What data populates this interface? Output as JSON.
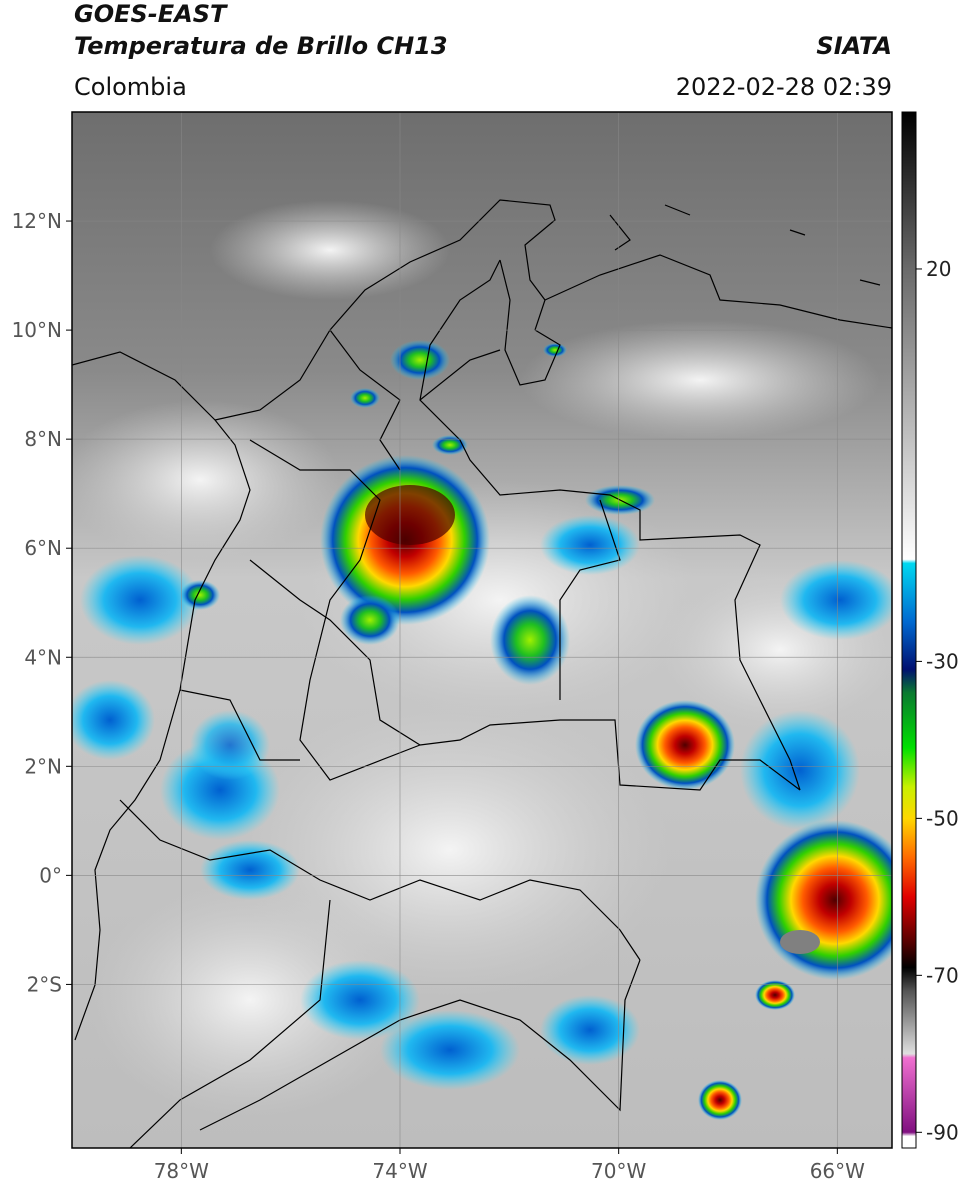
{
  "header": {
    "title_line1": "GOES-EAST",
    "title_line2": "Temperatura de Brillo CH13",
    "source": "SIATA",
    "region": "Colombia",
    "timestamp": "2022-02-28 02:39"
  },
  "map": {
    "lon_range": [
      -80,
      -65
    ],
    "lat_range": [
      -5,
      14
    ],
    "lat_ticks": [
      {
        "value": 12,
        "label": "12°N"
      },
      {
        "value": 10,
        "label": "10°N"
      },
      {
        "value": 8,
        "label": "8°N"
      },
      {
        "value": 6,
        "label": "6°N"
      },
      {
        "value": 4,
        "label": "4°N"
      },
      {
        "value": 2,
        "label": "2°N"
      },
      {
        "value": 0,
        "label": "0°"
      },
      {
        "value": -2,
        "label": "2°S"
      }
    ],
    "lon_ticks": [
      {
        "value": -78,
        "label": "78°W"
      },
      {
        "value": -74,
        "label": "74°W"
      },
      {
        "value": -70,
        "label": "70°W"
      },
      {
        "value": -66,
        "label": "66°W"
      }
    ],
    "grid": true
  },
  "colorbar": {
    "range": [
      -92,
      40
    ],
    "ticks": [
      20,
      -30,
      -50,
      -70,
      -90
    ],
    "colormap": [
      {
        "value": 40,
        "color": "#000000"
      },
      {
        "value": 20,
        "color": "#6a6a6a"
      },
      {
        "value": -17,
        "color": "#ffffff"
      },
      {
        "value": -17.5,
        "color": "#00d8f0"
      },
      {
        "value": -25,
        "color": "#0068d0"
      },
      {
        "value": -31,
        "color": "#001070"
      },
      {
        "value": -34,
        "color": "#0a7a30"
      },
      {
        "value": -41,
        "color": "#00e000"
      },
      {
        "value": -46,
        "color": "#c8f000"
      },
      {
        "value": -50,
        "color": "#ffd800"
      },
      {
        "value": -55,
        "color": "#ff6a00"
      },
      {
        "value": -60,
        "color": "#e00000"
      },
      {
        "value": -66,
        "color": "#500000"
      },
      {
        "value": -69,
        "color": "#000000"
      },
      {
        "value": -72,
        "color": "#555555"
      },
      {
        "value": -80,
        "color": "#e0e0e0"
      },
      {
        "value": -80.5,
        "color": "#f070d0"
      },
      {
        "value": -90,
        "color": "#801080"
      },
      {
        "value": -90.5,
        "color": "#ffffff"
      },
      {
        "value": -92,
        "color": "#ffffff"
      }
    ]
  }
}
